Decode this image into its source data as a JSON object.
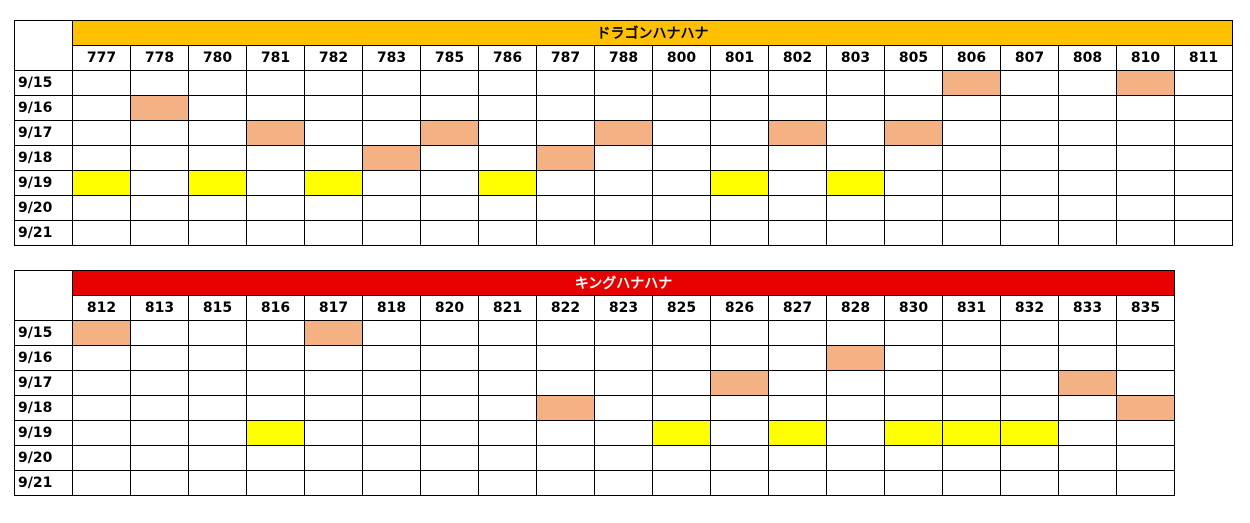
{
  "colors": {
    "salmon": "#F4B183",
    "yellow": "#FFFF00"
  },
  "tables": [
    {
      "title": "ドラゴンハナハナ",
      "title_bg": "#FFC000",
      "title_color": "#000000",
      "columns": [
        "777",
        "778",
        "780",
        "781",
        "782",
        "783",
        "785",
        "786",
        "787",
        "788",
        "800",
        "801",
        "802",
        "803",
        "805",
        "806",
        "807",
        "808",
        "810",
        "811"
      ],
      "rows": [
        {
          "date": "9/15",
          "marks": {
            "806": "salmon",
            "810": "salmon"
          }
        },
        {
          "date": "9/16",
          "marks": {
            "778": "salmon"
          }
        },
        {
          "date": "9/17",
          "marks": {
            "781": "salmon",
            "785": "salmon",
            "788": "salmon",
            "802": "salmon",
            "805": "salmon"
          }
        },
        {
          "date": "9/18",
          "marks": {
            "783": "salmon",
            "787": "salmon"
          }
        },
        {
          "date": "9/19",
          "marks": {
            "777": "yellow",
            "780": "yellow",
            "782": "yellow",
            "786": "yellow",
            "801": "yellow",
            "803": "yellow"
          }
        },
        {
          "date": "9/20",
          "marks": {}
        },
        {
          "date": "9/21",
          "marks": {}
        }
      ]
    },
    {
      "title": "キングハナハナ",
      "title_bg": "#E60000",
      "title_color": "#FFFFFF",
      "columns": [
        "812",
        "813",
        "815",
        "816",
        "817",
        "818",
        "820",
        "821",
        "822",
        "823",
        "825",
        "826",
        "827",
        "828",
        "830",
        "831",
        "832",
        "833",
        "835"
      ],
      "rows": [
        {
          "date": "9/15",
          "marks": {
            "812": "salmon",
            "817": "salmon"
          }
        },
        {
          "date": "9/16",
          "marks": {
            "828": "salmon"
          }
        },
        {
          "date": "9/17",
          "marks": {
            "826": "salmon",
            "833": "salmon"
          }
        },
        {
          "date": "9/18",
          "marks": {
            "822": "salmon",
            "835": "salmon"
          }
        },
        {
          "date": "9/19",
          "marks": {
            "816": "yellow",
            "825": "yellow",
            "827": "yellow",
            "830": "yellow",
            "831": "yellow",
            "832": "yellow"
          }
        },
        {
          "date": "9/20",
          "marks": {}
        },
        {
          "date": "9/21",
          "marks": {}
        }
      ]
    }
  ]
}
